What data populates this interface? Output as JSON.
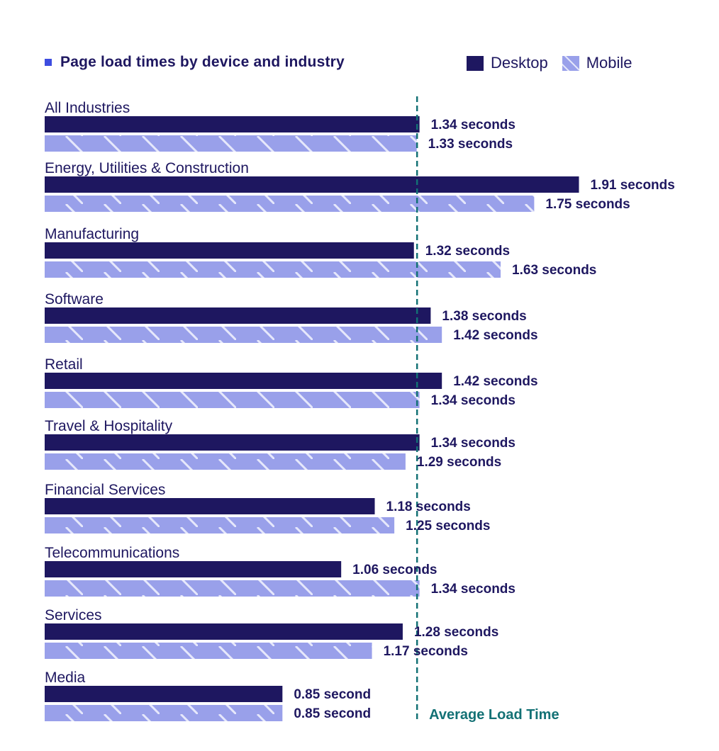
{
  "chart_data": {
    "type": "bar",
    "orientation": "horizontal",
    "title": "Page load times by device and industry",
    "xlabel": "",
    "ylabel": "",
    "xlim": [
      0,
      2.0
    ],
    "grid": false,
    "legend": {
      "placement": "top-right",
      "entries": [
        "Desktop",
        "Mobile"
      ]
    },
    "categories": [
      "All Industries",
      "Energy, Utilities & Construction",
      "Manufacturing",
      "Software",
      "Retail",
      "Travel & Hospitality",
      "Financial Services",
      "Telecommunications",
      "Services",
      "Media"
    ],
    "series": [
      {
        "name": "Desktop",
        "color": "#1e1760",
        "pattern": "solid",
        "values": [
          1.34,
          1.91,
          1.32,
          1.38,
          1.42,
          1.34,
          1.18,
          1.06,
          1.28,
          0.85
        ],
        "labels": [
          "1.34 seconds",
          "1.91 seconds",
          "1.32 seconds",
          "1.38 seconds",
          "1.42 seconds",
          "1.34 seconds",
          "1.18 seconds",
          "1.06 seconds",
          "1.28 seconds",
          "0.85  second"
        ]
      },
      {
        "name": "Mobile",
        "color": "#99a0ea",
        "pattern": "diagonal-stripes",
        "values": [
          1.33,
          1.75,
          1.63,
          1.42,
          1.34,
          1.29,
          1.25,
          1.34,
          1.17,
          0.85
        ],
        "labels": [
          "1.33 seconds",
          "1.75 seconds",
          "1.63 seconds",
          "1.42 seconds",
          "1.34 seconds",
          "1.29 seconds",
          "1.25 seconds",
          "1.34 seconds",
          "1.17 seconds",
          "0.85  second"
        ]
      }
    ],
    "reference_line": {
      "label": "Average Load Time",
      "value": 1.33,
      "style": "dashed",
      "color": "#137175"
    }
  },
  "colors": {
    "title_marker": "#3d4de0",
    "text": "#1e1760",
    "stripe": "#e6e8fb"
  }
}
